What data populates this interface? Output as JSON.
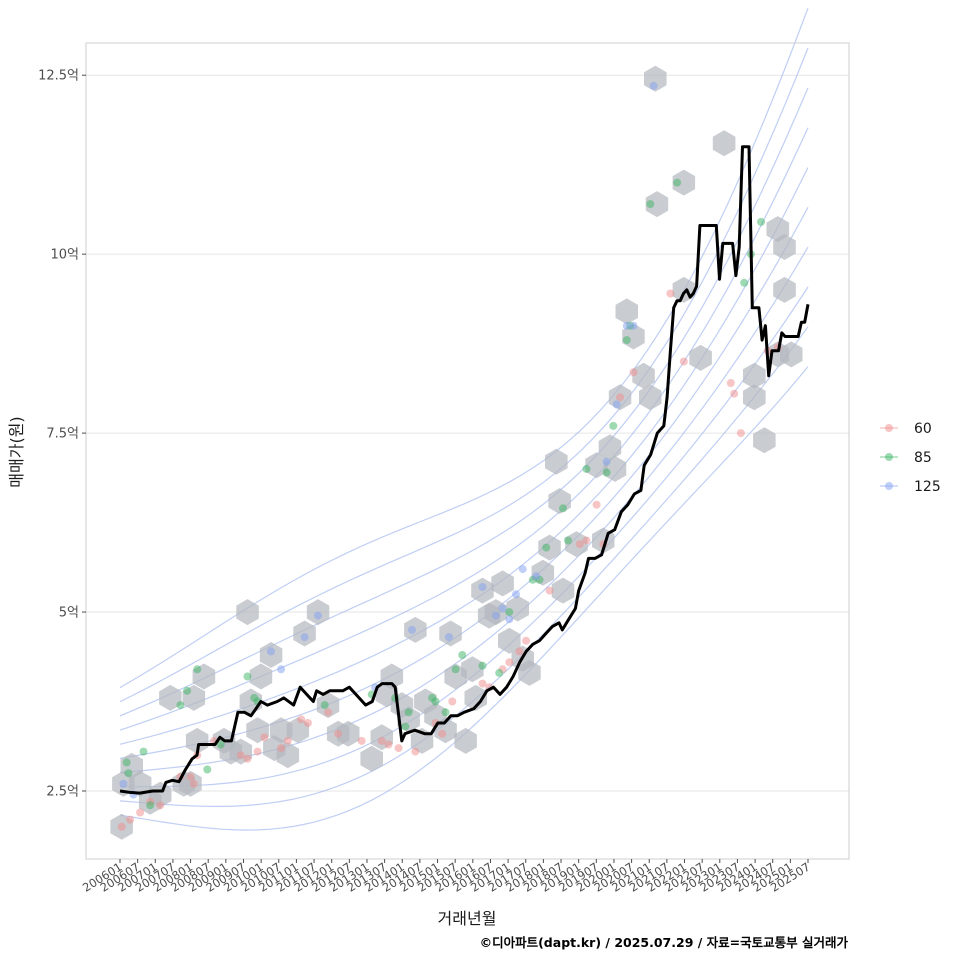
{
  "chart_data": {
    "type": "scatter",
    "xlabel": "거래년월",
    "ylabel": "매매가(원)",
    "caption": "©디아파트(dapt.kr) / 2025.07.29 / 자료=국토교통부 실거래가",
    "ylim": [
      1.55,
      12.95
    ],
    "xlim": [
      2005.6,
      2026.6
    ],
    "y_ticks": [
      {
        "value": 2.5,
        "label": "2.5억"
      },
      {
        "value": 5,
        "label": "5억"
      },
      {
        "value": 7.5,
        "label": "7.5억"
      },
      {
        "value": 10,
        "label": "10억"
      },
      {
        "value": 12.5,
        "label": "12.5억"
      }
    ],
    "x_ticks": [
      "200601",
      "200607",
      "200701",
      "200707",
      "200801",
      "200807",
      "200901",
      "200907",
      "201001",
      "201007",
      "201101",
      "201107",
      "201201",
      "201207",
      "201301",
      "201307",
      "201401",
      "201407",
      "201501",
      "201507",
      "201601",
      "201607",
      "201701",
      "201707",
      "201801",
      "201807",
      "201901",
      "201907",
      "202001",
      "202007",
      "202101",
      "202107",
      "202201",
      "202207",
      "202301",
      "202307",
      "202401",
      "202407",
      "202501",
      "202507"
    ],
    "grid": true,
    "legend_position": "right",
    "legend": [
      {
        "label": "60",
        "color": "#f08c8c"
      },
      {
        "label": "85",
        "color": "#3cb464"
      },
      {
        "label": "125",
        "color": "#82a0f0"
      }
    ],
    "series": [
      {
        "name": "60",
        "color": "#f08c8c",
        "points": [
          [
            2006.05,
            2.0
          ],
          [
            2006.3,
            2.1
          ],
          [
            2006.6,
            2.2
          ],
          [
            2006.9,
            2.35
          ],
          [
            2007.2,
            2.3
          ],
          [
            2007.8,
            2.7
          ],
          [
            2008.1,
            2.7
          ],
          [
            2008.2,
            2.6
          ],
          [
            2008.3,
            3.0
          ],
          [
            2008.8,
            3.2
          ],
          [
            2009.6,
            3.0
          ],
          [
            2009.8,
            2.95
          ],
          [
            2010.1,
            3.05
          ],
          [
            2010.3,
            3.25
          ],
          [
            2010.8,
            3.1
          ],
          [
            2011.0,
            3.2
          ],
          [
            2011.4,
            3.5
          ],
          [
            2011.6,
            3.45
          ],
          [
            2012.2,
            3.6
          ],
          [
            2012.5,
            3.3
          ],
          [
            2013.2,
            3.2
          ],
          [
            2013.8,
            3.2
          ],
          [
            2014.0,
            3.15
          ],
          [
            2014.3,
            3.1
          ],
          [
            2014.8,
            3.05
          ],
          [
            2015.4,
            3.45
          ],
          [
            2015.6,
            3.3
          ],
          [
            2015.9,
            3.75
          ],
          [
            2016.8,
            4.0
          ],
          [
            2017.0,
            3.95
          ],
          [
            2017.4,
            4.2
          ],
          [
            2017.6,
            4.3
          ],
          [
            2017.9,
            4.45
          ],
          [
            2018.1,
            4.6
          ],
          [
            2018.8,
            5.3
          ],
          [
            2019.7,
            5.95
          ],
          [
            2019.9,
            6.0
          ],
          [
            2020.2,
            6.5
          ],
          [
            2020.4,
            5.95
          ],
          [
            2020.9,
            8.0
          ],
          [
            2021.3,
            8.35
          ],
          [
            2022.4,
            9.45
          ],
          [
            2022.8,
            8.5
          ],
          [
            2024.2,
            8.2
          ],
          [
            2024.3,
            8.05
          ],
          [
            2024.5,
            7.5
          ],
          [
            2025.3,
            8.65
          ],
          [
            2025.6,
            8.7
          ]
        ]
      },
      {
        "name": "85",
        "color": "#3cb464",
        "points": [
          [
            2006.2,
            2.9
          ],
          [
            2006.25,
            2.75
          ],
          [
            2006.7,
            3.05
          ],
          [
            2006.9,
            2.3
          ],
          [
            2008.0,
            3.9
          ],
          [
            2008.3,
            4.2
          ],
          [
            2007.8,
            3.7
          ],
          [
            2008.6,
            2.8
          ],
          [
            2009.0,
            3.15
          ],
          [
            2009.8,
            4.1
          ],
          [
            2010.0,
            3.8
          ],
          [
            2010.1,
            3.75
          ],
          [
            2012.1,
            3.7
          ],
          [
            2013.5,
            3.85
          ],
          [
            2014.2,
            3.8
          ],
          [
            2014.5,
            3.4
          ],
          [
            2014.6,
            3.6
          ],
          [
            2015.3,
            3.8
          ],
          [
            2015.4,
            3.75
          ],
          [
            2015.7,
            3.6
          ],
          [
            2016.0,
            4.2
          ],
          [
            2016.2,
            4.4
          ],
          [
            2016.8,
            4.25
          ],
          [
            2017.3,
            4.15
          ],
          [
            2017.6,
            5.0
          ],
          [
            2018.3,
            5.45
          ],
          [
            2018.5,
            5.45
          ],
          [
            2018.7,
            5.9
          ],
          [
            2019.2,
            6.45
          ],
          [
            2019.35,
            6.0
          ],
          [
            2019.9,
            7.0
          ],
          [
            2020.5,
            6.95
          ],
          [
            2020.7,
            7.6
          ],
          [
            2021.1,
            8.8
          ],
          [
            2021.2,
            9.0
          ],
          [
            2021.8,
            10.7
          ],
          [
            2022.6,
            11.0
          ],
          [
            2024.6,
            9.6
          ],
          [
            2024.8,
            10.0
          ],
          [
            2025.1,
            10.45
          ]
        ]
      },
      {
        "name": "125",
        "color": "#82a0f0",
        "points": [
          [
            2006.1,
            2.6
          ],
          [
            2006.4,
            2.45
          ],
          [
            2010.5,
            4.45
          ],
          [
            2010.8,
            4.2
          ],
          [
            2011.5,
            4.65
          ],
          [
            2011.9,
            4.95
          ],
          [
            2013.6,
            3.95
          ],
          [
            2014.7,
            4.75
          ],
          [
            2015.8,
            4.65
          ],
          [
            2016.8,
            5.35
          ],
          [
            2017.2,
            4.95
          ],
          [
            2017.4,
            5.05
          ],
          [
            2017.6,
            4.9
          ],
          [
            2017.8,
            5.25
          ],
          [
            2018.0,
            5.6
          ],
          [
            2018.4,
            5.5
          ],
          [
            2020.5,
            7.1
          ],
          [
            2020.8,
            7.9
          ],
          [
            2021.1,
            9.0
          ],
          [
            2021.3,
            9.0
          ],
          [
            2021.9,
            12.35
          ]
        ]
      }
    ],
    "hexbin_centers": [
      [
        2006.05,
        2.0
      ],
      [
        2006.1,
        2.6
      ],
      [
        2006.35,
        2.85
      ],
      [
        2006.6,
        2.6
      ],
      [
        2006.9,
        2.35
      ],
      [
        2007.2,
        2.45
      ],
      [
        2007.5,
        3.8
      ],
      [
        2007.9,
        2.6
      ],
      [
        2008.1,
        2.6
      ],
      [
        2008.2,
        3.8
      ],
      [
        2008.5,
        4.1
      ],
      [
        2008.3,
        3.2
      ],
      [
        2009.1,
        3.2
      ],
      [
        2009.3,
        3.05
      ],
      [
        2009.6,
        3.05
      ],
      [
        2009.8,
        5.0
      ],
      [
        2009.9,
        3.75
      ],
      [
        2010.1,
        3.35
      ],
      [
        2010.2,
        4.1
      ],
      [
        2010.5,
        4.4
      ],
      [
        2010.6,
        3.1
      ],
      [
        2010.8,
        3.35
      ],
      [
        2011.0,
        3.0
      ],
      [
        2011.3,
        3.35
      ],
      [
        2011.5,
        4.7
      ],
      [
        2011.9,
        5.0
      ],
      [
        2012.2,
        3.7
      ],
      [
        2012.5,
        3.3
      ],
      [
        2012.8,
        3.3
      ],
      [
        2013.5,
        2.95
      ],
      [
        2013.8,
        3.25
      ],
      [
        2013.95,
        3.85
      ],
      [
        2014.1,
        4.1
      ],
      [
        2014.4,
        3.7
      ],
      [
        2014.6,
        3.5
      ],
      [
        2014.8,
        4.75
      ],
      [
        2015.0,
        3.2
      ],
      [
        2015.1,
        3.75
      ],
      [
        2015.4,
        3.55
      ],
      [
        2015.7,
        3.35
      ],
      [
        2015.85,
        4.7
      ],
      [
        2016.0,
        4.1
      ],
      [
        2016.3,
        3.2
      ],
      [
        2016.5,
        4.2
      ],
      [
        2016.6,
        3.8
      ],
      [
        2016.8,
        5.3
      ],
      [
        2017.0,
        4.95
      ],
      [
        2017.2,
        5.0
      ],
      [
        2017.4,
        5.4
      ],
      [
        2017.6,
        4.6
      ],
      [
        2017.85,
        5.05
      ],
      [
        2018.0,
        4.35
      ],
      [
        2018.2,
        4.15
      ],
      [
        2018.6,
        5.55
      ],
      [
        2018.8,
        5.9
      ],
      [
        2019.0,
        7.1
      ],
      [
        2019.1,
        6.55
      ],
      [
        2019.2,
        5.3
      ],
      [
        2019.6,
        5.95
      ],
      [
        2020.2,
        7.05
      ],
      [
        2020.4,
        6.0
      ],
      [
        2020.6,
        7.3
      ],
      [
        2020.75,
        7.0
      ],
      [
        2020.9,
        8.0
      ],
      [
        2021.1,
        9.2
      ],
      [
        2021.3,
        8.85
      ],
      [
        2021.6,
        8.3
      ],
      [
        2021.8,
        8.0
      ],
      [
        2021.95,
        12.45
      ],
      [
        2022.0,
        10.7
      ],
      [
        2022.8,
        11.0
      ],
      [
        2022.8,
        9.5
      ],
      [
        2023.3,
        8.55
      ],
      [
        2024.0,
        11.55
      ],
      [
        2024.9,
        8.3
      ],
      [
        2024.9,
        8.0
      ],
      [
        2025.2,
        7.4
      ],
      [
        2025.8,
        9.5
      ],
      [
        2025.8,
        10.1
      ],
      [
        2025.6,
        10.35
      ],
      [
        2025.6,
        8.6
      ],
      [
        2026.0,
        8.6
      ]
    ],
    "median_line": [
      [
        2006.0,
        2.5
      ],
      [
        2006.3,
        2.48
      ],
      [
        2006.6,
        2.47
      ],
      [
        2007.0,
        2.5
      ],
      [
        2007.3,
        2.5
      ],
      [
        2007.4,
        2.62
      ],
      [
        2007.6,
        2.65
      ],
      [
        2007.8,
        2.63
      ],
      [
        2008.0,
        2.8
      ],
      [
        2008.2,
        2.95
      ],
      [
        2008.35,
        3.0
      ],
      [
        2008.4,
        3.15
      ],
      [
        2008.9,
        3.15
      ],
      [
        2009.05,
        3.25
      ],
      [
        2009.2,
        3.2
      ],
      [
        2009.4,
        3.2
      ],
      [
        2009.6,
        3.6
      ],
      [
        2009.8,
        3.6
      ],
      [
        2010.0,
        3.55
      ],
      [
        2010.3,
        3.75
      ],
      [
        2010.5,
        3.7
      ],
      [
        2010.8,
        3.75
      ],
      [
        2011.0,
        3.8
      ],
      [
        2011.3,
        3.7
      ],
      [
        2011.5,
        3.95
      ],
      [
        2011.7,
        3.85
      ],
      [
        2011.9,
        3.75
      ],
      [
        2012.0,
        3.9
      ],
      [
        2012.2,
        3.85
      ],
      [
        2012.4,
        3.9
      ],
      [
        2012.6,
        3.9
      ],
      [
        2012.8,
        3.9
      ],
      [
        2013.0,
        3.95
      ],
      [
        2013.2,
        3.85
      ],
      [
        2013.4,
        3.75
      ],
      [
        2013.5,
        3.7
      ],
      [
        2013.7,
        3.75
      ],
      [
        2013.85,
        3.95
      ],
      [
        2014.0,
        4.0
      ],
      [
        2014.3,
        4.0
      ],
      [
        2014.4,
        3.95
      ],
      [
        2014.6,
        3.2
      ],
      [
        2014.7,
        3.3
      ],
      [
        2015.0,
        3.35
      ],
      [
        2015.3,
        3.3
      ],
      [
        2015.5,
        3.3
      ],
      [
        2015.7,
        3.45
      ],
      [
        2015.9,
        3.45
      ],
      [
        2016.1,
        3.55
      ],
      [
        2016.3,
        3.55
      ],
      [
        2016.5,
        3.6
      ],
      [
        2016.8,
        3.65
      ],
      [
        2017.0,
        3.75
      ],
      [
        2017.2,
        3.9
      ],
      [
        2017.4,
        3.95
      ],
      [
        2017.6,
        3.85
      ],
      [
        2017.8,
        3.95
      ],
      [
        2018.0,
        4.1
      ],
      [
        2018.2,
        4.3
      ],
      [
        2018.4,
        4.45
      ],
      [
        2018.6,
        4.55
      ],
      [
        2018.8,
        4.6
      ],
      [
        2019.0,
        4.7
      ],
      [
        2019.2,
        4.8
      ],
      [
        2019.4,
        4.85
      ],
      [
        2019.5,
        4.75
      ],
      [
        2019.7,
        4.9
      ],
      [
        2019.9,
        5.05
      ],
      [
        2020.0,
        5.3
      ],
      [
        2020.2,
        5.55
      ],
      [
        2020.3,
        5.75
      ],
      [
        2020.5,
        5.75
      ],
      [
        2020.7,
        5.8
      ],
      [
        2020.9,
        6.1
      ],
      [
        2021.1,
        6.15
      ],
      [
        2021.3,
        6.4
      ],
      [
        2021.5,
        6.5
      ],
      [
        2021.7,
        6.65
      ],
      [
        2021.9,
        6.7
      ],
      [
        2022.0,
        7.05
      ],
      [
        2022.2,
        7.2
      ],
      [
        2022.3,
        7.35
      ],
      [
        2022.4,
        7.5
      ],
      [
        2022.6,
        7.6
      ],
      [
        2022.7,
        8.0
      ],
      [
        2022.8,
        8.65
      ],
      [
        2022.9,
        9.25
      ],
      [
        2023.0,
        9.35
      ],
      [
        2023.1,
        9.35
      ],
      [
        2023.2,
        9.45
      ],
      [
        2023.3,
        9.5
      ],
      [
        2023.4,
        9.4
      ],
      [
        2023.5,
        9.45
      ],
      [
        2023.6,
        9.55
      ],
      [
        2023.7,
        10.4
      ],
      [
        2024.0,
        10.4
      ],
      [
        2024.2,
        10.4
      ],
      [
        2024.3,
        9.65
      ],
      [
        2024.4,
        10.15
      ],
      [
        2024.7,
        10.15
      ],
      [
        2024.8,
        9.7
      ],
      [
        2024.9,
        10.1
      ],
      [
        2025.0,
        11.5
      ],
      [
        2025.2,
        11.5
      ],
      [
        2025.3,
        9.25
      ],
      [
        2025.5,
        9.25
      ],
      [
        2025.6,
        8.8
      ],
      [
        2025.7,
        9.0
      ],
      [
        2025.8,
        8.3
      ],
      [
        2025.9,
        8.65
      ],
      [
        2026.1,
        8.65
      ],
      [
        2026.2,
        8.9
      ],
      [
        2026.3,
        8.85
      ],
      [
        2026.5,
        8.85
      ],
      [
        2026.7,
        8.85
      ],
      [
        2026.8,
        9.05
      ],
      [
        2026.9,
        9.05
      ],
      [
        2027.0,
        9.3
      ]
    ]
  }
}
